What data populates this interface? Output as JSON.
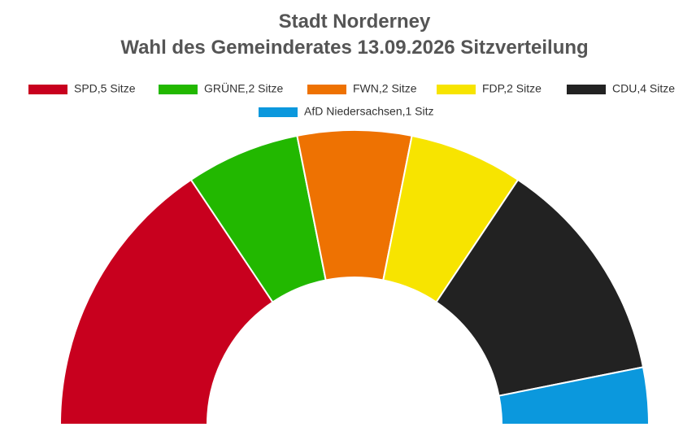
{
  "chart_data": {
    "type": "donut",
    "half": true,
    "title": "Stadt Norderney",
    "subtitle": "Wahl des Gemeinderates 13.09.2026 Sitzverteilung",
    "categories": [
      "SPD,5 Sitze",
      "GRÜNE,2 Sitze",
      "FWN,2 Sitze",
      "FDP,2 Sitze",
      "CDU,4 Sitze",
      "AfD Niedersachsen,1 Sitz"
    ],
    "values": [
      5,
      2,
      2,
      2,
      4,
      1
    ],
    "colors": [
      "#c8001e",
      "#22b800",
      "#ee7202",
      "#f7e400",
      "#222222",
      "#0b98dd"
    ],
    "legend": "top"
  }
}
